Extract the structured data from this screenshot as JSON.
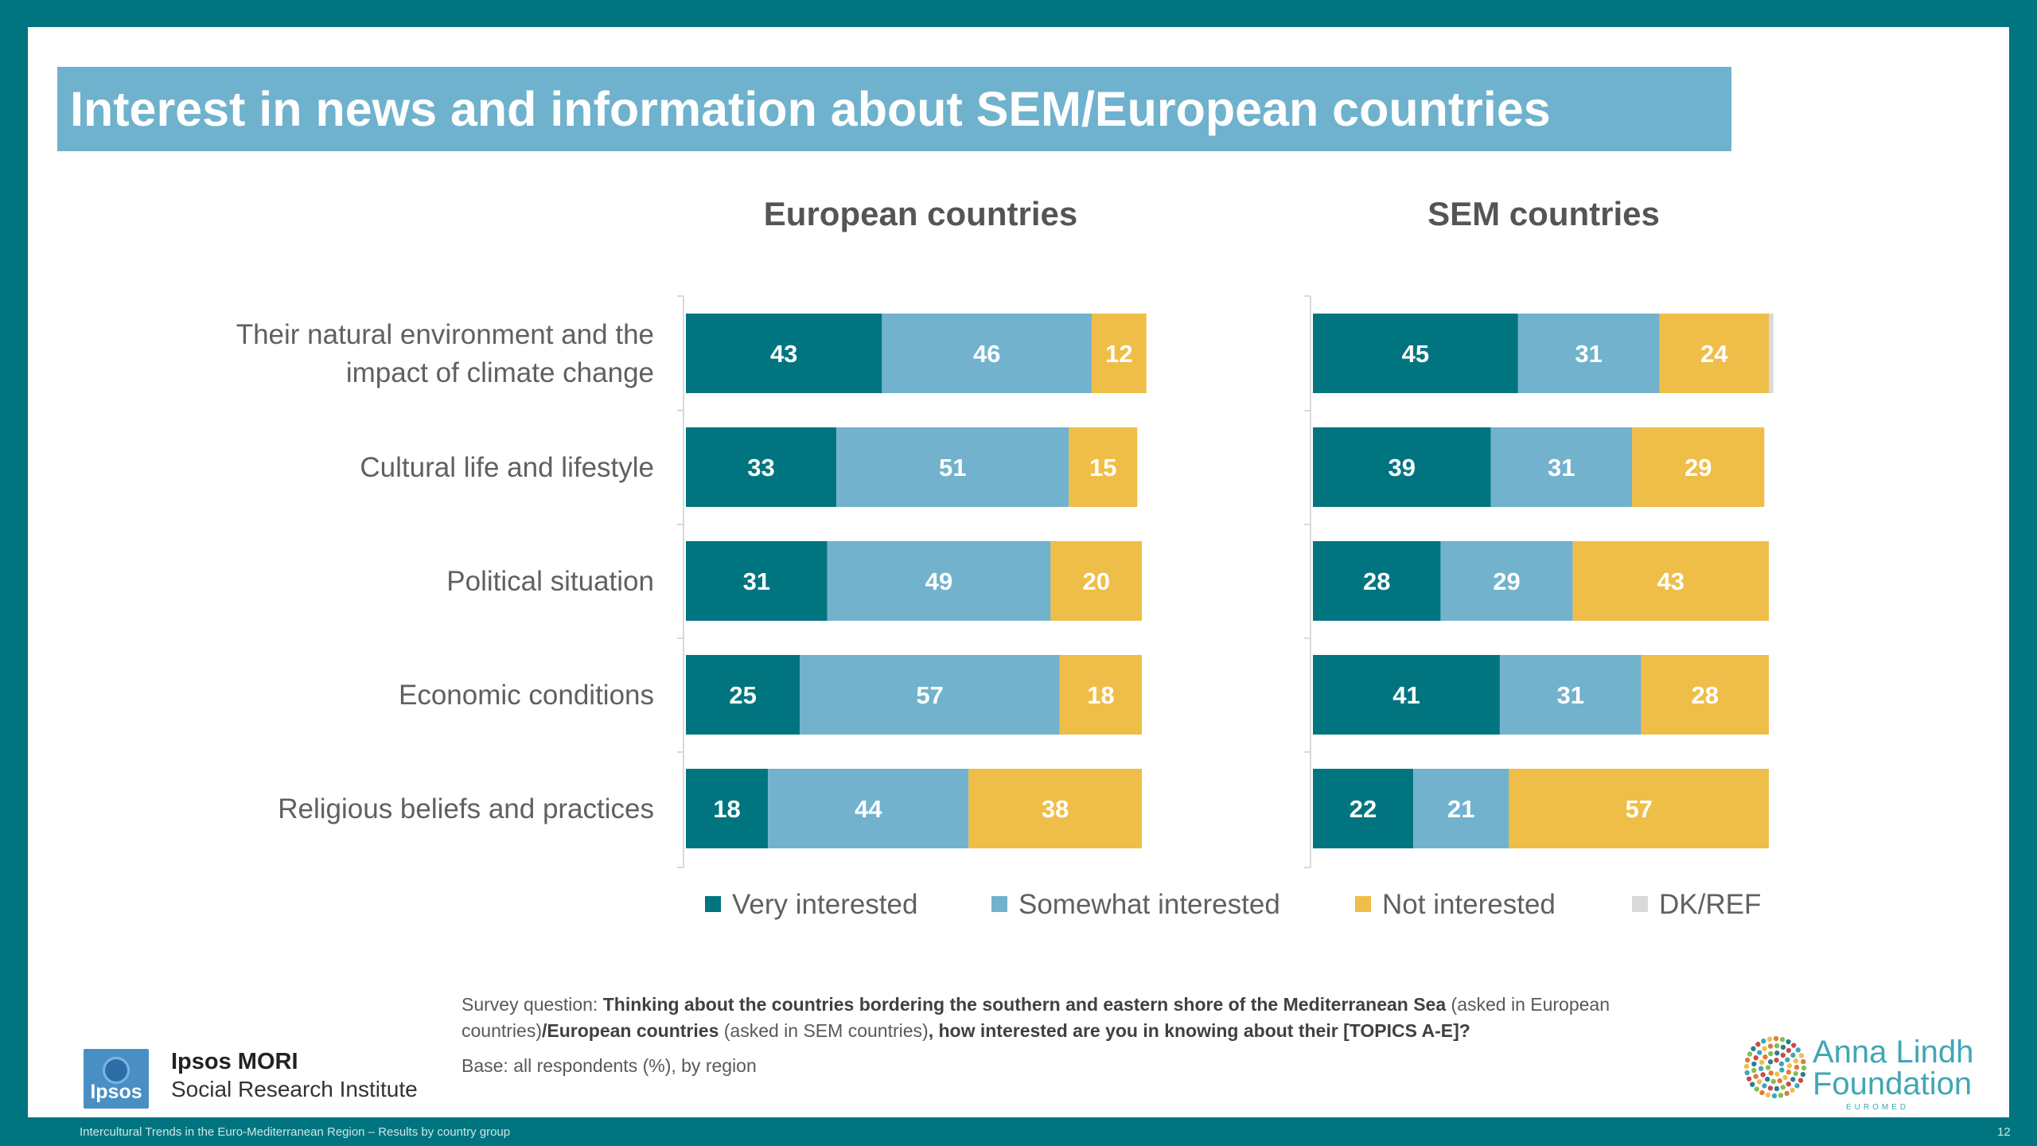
{
  "title": "Interest in news and information about SEM/European countries",
  "chart_data": [
    {
      "type": "bar",
      "orientation": "horizontal",
      "stacked": true,
      "title": "European countries",
      "categories": [
        "Their natural environment and the impact of climate change",
        "Cultural life and lifestyle",
        "Political situation",
        "Economic conditions",
        "Religious beliefs and practices"
      ],
      "series": [
        {
          "name": "Very interested",
          "values": [
            43,
            33,
            31,
            25,
            18
          ]
        },
        {
          "name": "Somewhat interested",
          "values": [
            46,
            51,
            49,
            57,
            44
          ]
        },
        {
          "name": "Not interested",
          "values": [
            12,
            15,
            20,
            18,
            38
          ]
        },
        {
          "name": "DK/REF",
          "values": [
            0,
            0,
            0,
            0,
            0
          ]
        }
      ]
    },
    {
      "type": "bar",
      "orientation": "horizontal",
      "stacked": true,
      "title": "SEM countries",
      "categories": [
        "Their natural environment and the impact of climate change",
        "Cultural life and lifestyle",
        "Political situation",
        "Economic conditions",
        "Religious beliefs and practices"
      ],
      "series": [
        {
          "name": "Very interested",
          "values": [
            45,
            39,
            28,
            41,
            22
          ]
        },
        {
          "name": "Somewhat interested",
          "values": [
            31,
            31,
            29,
            31,
            21
          ]
        },
        {
          "name": "Not interested",
          "values": [
            24,
            29,
            43,
            28,
            57
          ]
        },
        {
          "name": "DK/REF",
          "values": [
            1,
            0,
            0,
            0,
            0
          ]
        }
      ]
    }
  ],
  "category_lines": [
    [
      "Their natural environment and the",
      "impact of climate change"
    ],
    [
      "Cultural life and lifestyle"
    ],
    [
      "Political situation"
    ],
    [
      "Economic conditions"
    ],
    [
      "Religious beliefs and practices"
    ]
  ],
  "colors": {
    "very": "#007580",
    "somewhat": "#72B2CD",
    "not": "#EFBE48",
    "dk": "#D9D9D9"
  },
  "note": {
    "prefix": "Survey question: ",
    "q1": "Thinking about the countries bordering the southern and eastern shore of the Mediterranean Sea",
    "mid1": " (asked in European countries)",
    "q2": "/European countries",
    "mid2": " (asked in SEM countries)",
    "q3": ", how interested are you in knowing about their [TOPICS A-E]?"
  },
  "base": "Base: all respondents (%), by region",
  "ipsos": {
    "logo_text": "Ipsos",
    "name": "Ipsos MORI",
    "sub": "Social Research Institute"
  },
  "alf": {
    "name_line1": "Anna Lindh",
    "name_line2": "Foundation",
    "sub": "EUROMED"
  },
  "footer": "Intercultural Trends in the Euro-Mediterranean Region – Results by country group",
  "page_number": "12"
}
